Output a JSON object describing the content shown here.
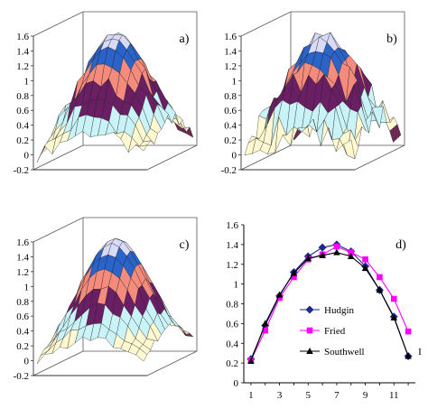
{
  "chart_data": [
    {
      "panel": "a)",
      "type": "surface",
      "zlim": [
        -0.2,
        1.6
      ],
      "zticks": [
        "1.6",
        "1.4",
        "1.2",
        "1",
        "0.8",
        "0.6",
        "0.4",
        "0.2",
        "0",
        "-0.2"
      ],
      "band_colors": [
        "#6b2a52",
        "#fff9d2",
        "#c9f3f6",
        "#6a1e63",
        "#f48b7c",
        "#2a64c8",
        "#d9d9f8"
      ],
      "roughness": 0.06
    },
    {
      "panel": "b)",
      "type": "surface",
      "zlim": [
        -0.2,
        1.6
      ],
      "zticks": [
        "1.6",
        "1.4",
        "1.2",
        "1",
        "0.8",
        "0.6",
        "0.4",
        "0.2",
        "0",
        "-0.2"
      ],
      "band_colors": [
        "#6b2a52",
        "#fff9d2",
        "#c9f3f6",
        "#6a1e63",
        "#f48b7c",
        "#2a64c8",
        "#d9d9f8"
      ],
      "roughness": 0.14
    },
    {
      "panel": "c)",
      "type": "surface",
      "zlim": [
        -0.2,
        1.6
      ],
      "zticks": [
        "1.6",
        "1.4",
        "1.2",
        "1",
        "0.8",
        "0.6",
        "0.4",
        "0.2",
        "0",
        "-0.2"
      ],
      "band_colors": [
        "#6b2a52",
        "#fff9d2",
        "#c9f3f6",
        "#6a1e63",
        "#f48b7c",
        "#2a64c8",
        "#d9d9f8"
      ],
      "roughness": 0.03
    },
    {
      "panel": "d)",
      "type": "line",
      "x": [
        1,
        2,
        3,
        4,
        5,
        6,
        7,
        8,
        9,
        10,
        11,
        12
      ],
      "xticks": [
        "1",
        "3",
        "5",
        "7",
        "9",
        "11"
      ],
      "xtick_values": [
        1,
        3,
        5,
        7,
        9,
        11
      ],
      "ylim": [
        0,
        1.6
      ],
      "yticks": [
        "0",
        "0.2",
        "0.4",
        "0.6",
        "0.8",
        "1",
        "1.2",
        "1.4",
        "1.6"
      ],
      "ytick_values": [
        0,
        0.2,
        0.4,
        0.6,
        0.8,
        1.0,
        1.2,
        1.4,
        1.6
      ],
      "legend_position": "bottom-center",
      "series": [
        {
          "name": "Hudgin",
          "color": "#1f2a8c",
          "marker": "diamond",
          "values": [
            0.24,
            0.58,
            0.88,
            1.12,
            1.28,
            1.37,
            1.4,
            1.33,
            1.18,
            0.94,
            0.67,
            0.27
          ]
        },
        {
          "name": "Fried",
          "color": "#ff00ff",
          "marker": "square",
          "values": [
            0.23,
            0.53,
            0.86,
            1.07,
            1.25,
            1.3,
            1.38,
            1.32,
            1.25,
            1.07,
            0.85,
            0.52
          ]
        },
        {
          "name": "Southwell",
          "color": "#000000",
          "marker": "triangle",
          "values": [
            0.22,
            0.6,
            0.89,
            1.11,
            1.26,
            1.29,
            1.32,
            1.28,
            1.16,
            0.94,
            0.66,
            0.27
          ]
        }
      ],
      "edge_mark": "I"
    }
  ]
}
